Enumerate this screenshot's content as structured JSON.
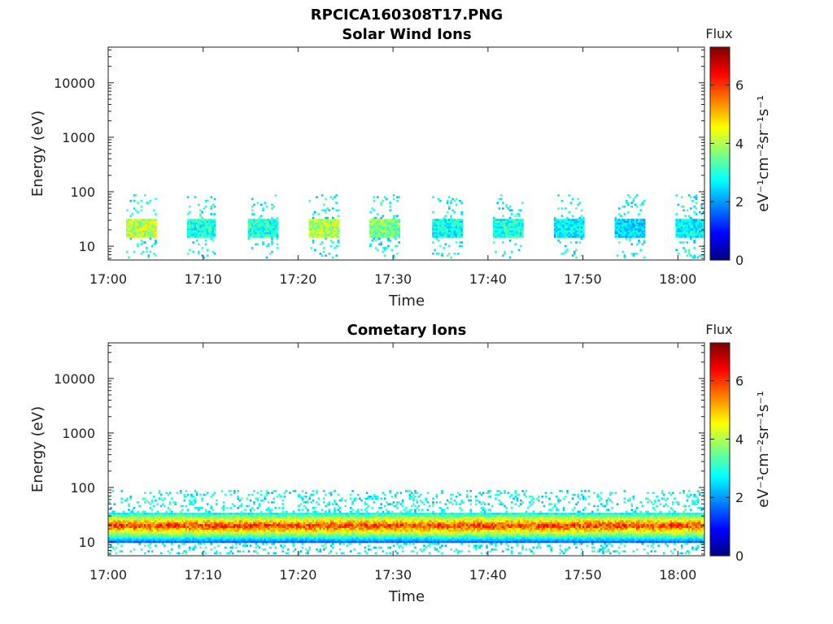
{
  "figure_title": "RPCICA160308T17.PNG",
  "colors": {
    "axis": "#222222",
    "background": "#ffffff"
  },
  "chart_data": [
    {
      "type": "heatmap",
      "title": "Solar Wind Ions",
      "xlabel": "Time",
      "ylabel": "Energy (eV)",
      "x_ticks": [
        "17:00",
        "17:10",
        "17:20",
        "17:30",
        "17:40",
        "17:50",
        "18:00"
      ],
      "x_tick_minutes": [
        0,
        10,
        20,
        30,
        40,
        50,
        60
      ],
      "xlim_minutes": [
        0,
        62.8
      ],
      "y_scale": "log",
      "ylim": [
        5.6,
        45000
      ],
      "y_ticks": [
        "10",
        "100",
        "1000",
        "10000"
      ],
      "y_tick_values": [
        10,
        100,
        1000,
        10000
      ],
      "colorbar": {
        "label": "Flux",
        "units": "eV⁻¹cm⁻²sr⁻¹s⁻¹",
        "colormap": "jet",
        "range": [
          0,
          7.3
        ],
        "ticks": [
          "0",
          "2",
          "4",
          "6"
        ],
        "tick_values": [
          0,
          2,
          4,
          6
        ]
      },
      "bursts": [
        {
          "start_minute": 1.8,
          "end_minute": 5.0,
          "peak_flux": 5.0
        },
        {
          "start_minute": 8.2,
          "end_minute": 11.3,
          "peak_flux": 3.6
        },
        {
          "start_minute": 14.6,
          "end_minute": 17.8,
          "peak_flux": 3.6
        },
        {
          "start_minute": 21.0,
          "end_minute": 24.2,
          "peak_flux": 4.8
        },
        {
          "start_minute": 27.5,
          "end_minute": 30.7,
          "peak_flux": 4.4
        },
        {
          "start_minute": 34.0,
          "end_minute": 37.2,
          "peak_flux": 3.4
        },
        {
          "start_minute": 40.4,
          "end_minute": 43.6,
          "peak_flux": 3.6
        },
        {
          "start_minute": 46.8,
          "end_minute": 50.0,
          "peak_flux": 3.2
        },
        {
          "start_minute": 53.2,
          "end_minute": 56.4,
          "peak_flux": 3.0
        },
        {
          "start_minute": 59.6,
          "end_minute": 62.8,
          "peak_flux": 3.2
        }
      ],
      "band_energy_range": [
        14,
        32
      ],
      "sparse_energy_range": [
        6,
        90
      ]
    },
    {
      "type": "heatmap",
      "title": "Cometary Ions",
      "xlabel": "Time",
      "ylabel": "Energy (eV)",
      "x_ticks": [
        "17:00",
        "17:10",
        "17:20",
        "17:30",
        "17:40",
        "17:50",
        "18:00"
      ],
      "x_tick_minutes": [
        0,
        10,
        20,
        30,
        40,
        50,
        60
      ],
      "xlim_minutes": [
        0,
        62.8
      ],
      "y_scale": "log",
      "ylim": [
        5.6,
        45000
      ],
      "y_ticks": [
        "10",
        "100",
        "1000",
        "10000"
      ],
      "y_tick_values": [
        10,
        100,
        1000,
        10000
      ],
      "colorbar": {
        "label": "Flux",
        "units": "eV⁻¹cm⁻²sr⁻¹s⁻¹",
        "colormap": "jet",
        "range": [
          0,
          7.3
        ],
        "ticks": [
          "0",
          "2",
          "4",
          "6"
        ],
        "tick_values": [
          0,
          2,
          4,
          6
        ]
      },
      "continuous_band": {
        "start_minute": 0,
        "end_minute": 62.8,
        "energy_range": [
          10,
          34
        ],
        "peak_energy": 20,
        "peak_flux": 6.5
      },
      "sparse_energy_range": [
        6,
        90
      ]
    }
  ]
}
